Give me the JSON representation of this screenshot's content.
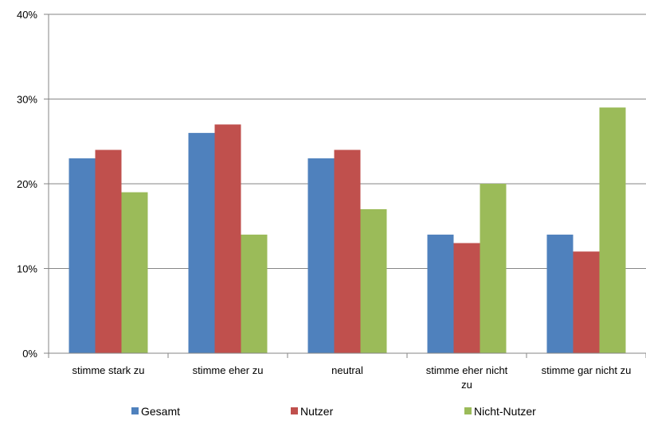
{
  "chart_data": {
    "type": "bar",
    "categories": [
      [
        "stimme stark zu"
      ],
      [
        "stimme eher zu"
      ],
      [
        "neutral"
      ],
      [
        "stimme eher nicht",
        "zu"
      ],
      [
        "stimme gar nicht zu"
      ]
    ],
    "series": [
      {
        "name": "Gesamt",
        "color": "#4F81BD",
        "values": [
          23,
          26,
          23,
          14,
          14
        ]
      },
      {
        "name": "Nutzer",
        "color": "#C0504D",
        "values": [
          24,
          27,
          24,
          13,
          12
        ]
      },
      {
        "name": "Nicht-Nutzer",
        "color": "#9BBB59",
        "values": [
          19,
          14,
          17,
          20,
          29
        ]
      }
    ],
    "ylim": [
      0,
      40
    ],
    "yticks": [
      0,
      10,
      20,
      30,
      40
    ],
    "ytick_labels": [
      "0%",
      "10%",
      "20%",
      "30%",
      "40%"
    ],
    "grid": true,
    "legend_position": "bottom"
  }
}
